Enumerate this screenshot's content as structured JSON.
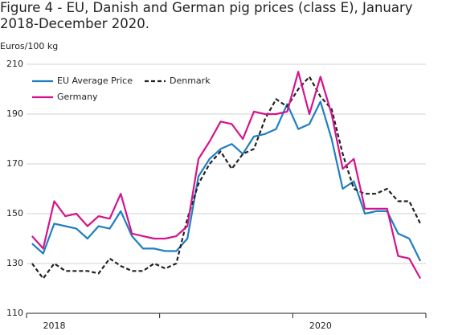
{
  "chart_data": {
    "type": "line",
    "title": "Figure 4 - EU, Danish and German pig prices (class E), January 2018-December 2020.",
    "y_axis_label": "Euros/100 kg",
    "categories": [
      null,
      null,
      "2018",
      null,
      null,
      null,
      null,
      null,
      null,
      null,
      null,
      null,
      null,
      null,
      null,
      null,
      null,
      null,
      null,
      null,
      null,
      null,
      null,
      null,
      null,
      null,
      "2020",
      null,
      null,
      null,
      null,
      null,
      null,
      null,
      null,
      null
    ],
    "series": [
      {
        "name": "EU Average Price",
        "color": "#1f7fc0",
        "dash": false,
        "values": [
          138,
          134,
          146,
          145,
          144,
          140,
          145,
          144,
          151,
          141,
          136,
          136,
          135,
          135,
          140,
          165,
          172,
          176,
          178,
          174,
          181,
          182,
          184,
          194,
          184,
          186,
          195,
          180,
          160,
          163,
          150,
          151,
          151,
          142,
          140,
          131
        ]
      },
      {
        "name": "Denmark",
        "color": "#222222",
        "dash": true,
        "values": [
          130,
          124,
          130,
          127,
          127,
          127,
          126,
          132,
          129,
          127,
          127,
          130,
          128,
          130,
          148,
          162,
          170,
          175,
          168,
          174,
          176,
          188,
          196,
          193,
          200,
          205,
          197,
          192,
          174,
          160,
          158,
          158,
          160,
          155,
          155,
          146
        ]
      },
      {
        "name": "Germany",
        "color": "#d4138c",
        "dash": false,
        "values": [
          141,
          136,
          155,
          149,
          150,
          145,
          149,
          148,
          158,
          142,
          141,
          140,
          140,
          141,
          145,
          172,
          179,
          187,
          186,
          180,
          191,
          190,
          190,
          191,
          207,
          190,
          205,
          190,
          168,
          172,
          152,
          152,
          152,
          133,
          132,
          124
        ]
      }
    ],
    "ylim": [
      110,
      210
    ],
    "yticks": [
      110,
      130,
      150,
      170,
      190,
      210
    ],
    "grid": true
  }
}
